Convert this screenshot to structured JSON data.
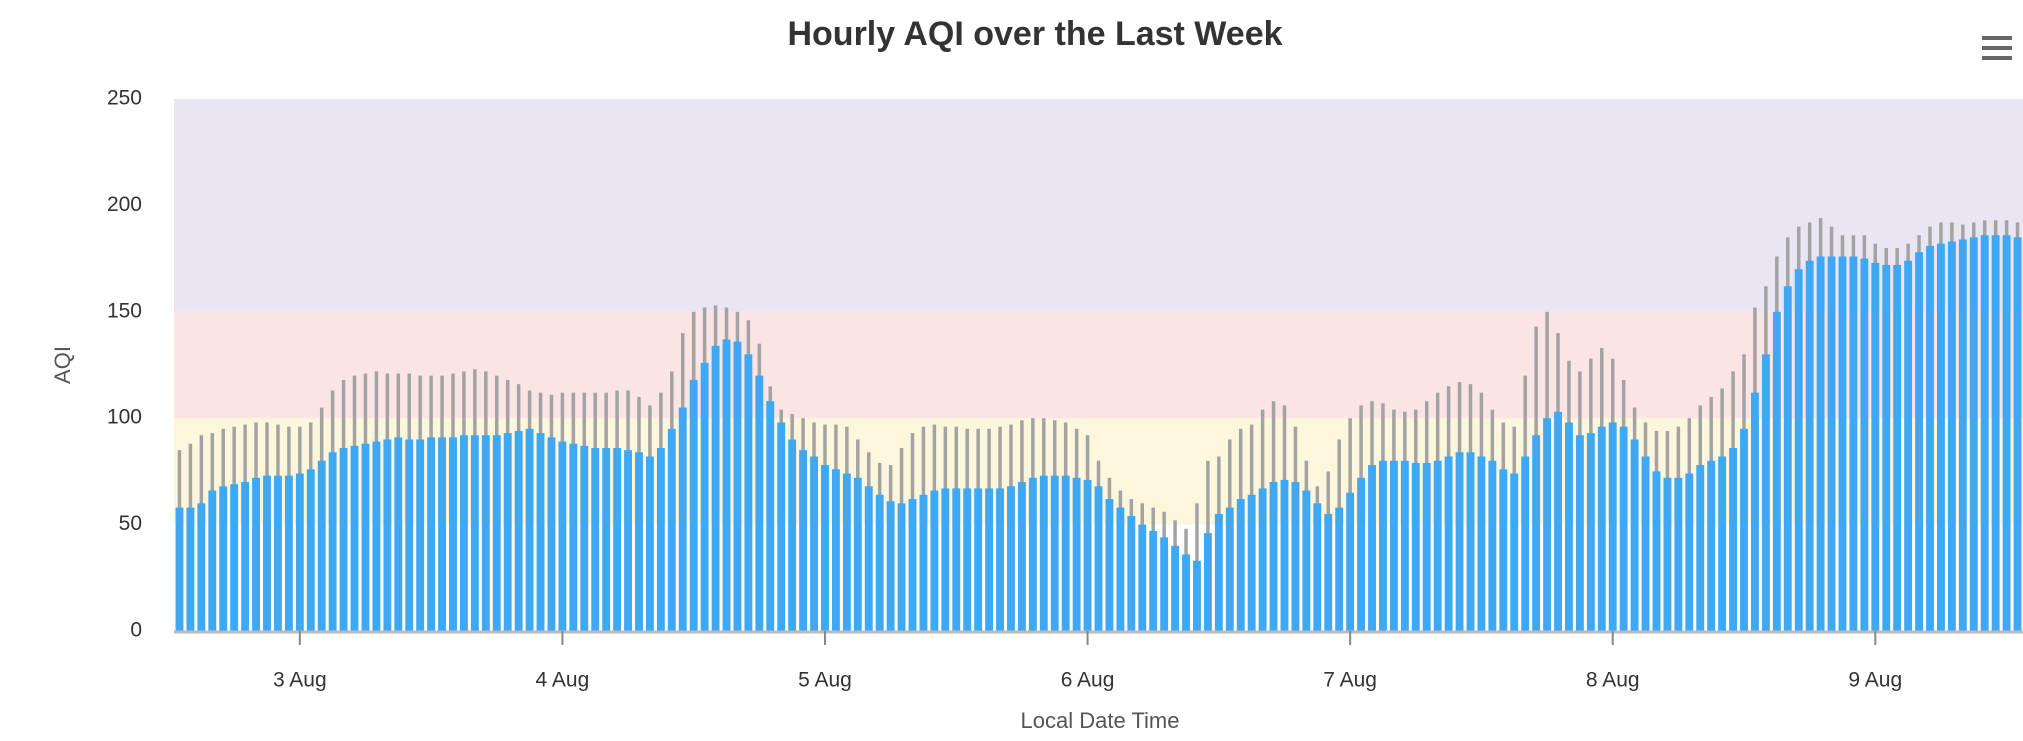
{
  "chart_data": {
    "type": "bar",
    "title": "Hourly AQI over the Last Week",
    "x_label": "Local Date Time",
    "y_label": "AQI",
    "categories": [
      null,
      null,
      null,
      null,
      null,
      null,
      null,
      null,
      null,
      null,
      null,
      "3 Aug",
      null,
      null,
      null,
      null,
      null,
      null,
      null,
      null,
      null,
      null,
      null,
      null,
      null,
      null,
      null,
      null,
      null,
      null,
      null,
      null,
      null,
      null,
      null,
      "4 Aug",
      null,
      null,
      null,
      null,
      null,
      null,
      null,
      null,
      null,
      null,
      null,
      null,
      null,
      null,
      null,
      null,
      null,
      null,
      null,
      null,
      null,
      null,
      null,
      "5 Aug",
      null,
      null,
      null,
      null,
      null,
      null,
      null,
      null,
      null,
      null,
      null,
      null,
      null,
      null,
      null,
      null,
      null,
      null,
      null,
      null,
      null,
      null,
      null,
      "6 Aug",
      null,
      null,
      null,
      null,
      null,
      null,
      null,
      null,
      null,
      null,
      null,
      null,
      null,
      null,
      null,
      null,
      null,
      null,
      null,
      null,
      null,
      null,
      null,
      "7 Aug",
      null,
      null,
      null,
      null,
      null,
      null,
      null,
      null,
      null,
      null,
      null,
      null,
      null,
      null,
      null,
      null,
      null,
      null,
      null,
      null,
      null,
      null,
      null,
      "8 Aug",
      null,
      null,
      null,
      null,
      null,
      null,
      null,
      null,
      null,
      null,
      null,
      null,
      null,
      null,
      null,
      null,
      null,
      null,
      null,
      null,
      null,
      null,
      null,
      "9 Aug",
      null,
      null,
      null,
      null,
      null,
      null,
      null,
      null,
      null,
      null,
      null,
      null,
      null
    ],
    "series": [
      {
        "color": "#a3a3a3",
        "values": [
          85,
          88,
          92,
          93,
          95,
          96,
          97,
          98,
          98,
          97,
          96,
          96,
          98,
          105,
          113,
          118,
          120,
          121,
          122,
          121,
          121,
          121,
          120,
          120,
          120,
          121,
          122,
          123,
          122,
          120,
          118,
          116,
          113,
          112,
          111,
          112,
          112,
          112,
          112,
          112,
          113,
          113,
          110,
          106,
          112,
          122,
          140,
          150,
          152,
          153,
          152,
          150,
          146,
          135,
          115,
          104,
          102,
          100,
          98,
          97,
          97,
          96,
          90,
          84,
          79,
          78,
          86,
          93,
          96,
          97,
          96,
          96,
          95,
          95,
          95,
          96,
          97,
          99,
          100,
          100,
          99,
          98,
          95,
          92,
          80,
          72,
          66,
          62,
          60,
          58,
          56,
          52,
          48,
          60,
          80,
          82,
          90,
          95,
          97,
          104,
          108,
          106,
          96,
          80,
          68,
          75,
          90,
          100,
          106,
          108,
          107,
          104,
          103,
          104,
          108,
          112,
          115,
          117,
          116,
          112,
          104,
          98,
          96,
          120,
          143,
          150,
          140,
          127,
          122,
          128,
          133,
          128,
          118,
          105,
          98,
          94,
          94,
          96,
          100,
          106,
          110,
          114,
          122,
          130,
          152,
          162,
          176,
          185,
          190,
          192,
          194,
          190,
          186,
          186,
          186,
          182,
          180,
          180,
          182,
          186,
          190,
          192,
          192,
          191,
          192,
          193,
          193,
          193,
          192
        ]
      },
      {
        "color": "#3ea8f4",
        "values": [
          58,
          58,
          60,
          66,
          68,
          69,
          70,
          72,
          73,
          73,
          73,
          74,
          76,
          80,
          84,
          86,
          87,
          88,
          89,
          90,
          91,
          90,
          90,
          91,
          91,
          91,
          92,
          92,
          92,
          92,
          93,
          94,
          95,
          93,
          91,
          89,
          88,
          87,
          86,
          86,
          86,
          85,
          84,
          82,
          86,
          95,
          105,
          118,
          126,
          134,
          137,
          136,
          130,
          120,
          108,
          98,
          90,
          85,
          82,
          78,
          76,
          74,
          72,
          68,
          64,
          61,
          60,
          62,
          64,
          66,
          67,
          67,
          67,
          67,
          67,
          67,
          68,
          70,
          72,
          73,
          73,
          73,
          72,
          71,
          68,
          62,
          58,
          54,
          50,
          47,
          44,
          40,
          36,
          33,
          46,
          55,
          58,
          62,
          64,
          67,
          70,
          71,
          70,
          66,
          60,
          55,
          58,
          65,
          72,
          78,
          80,
          80,
          80,
          79,
          79,
          80,
          82,
          84,
          84,
          82,
          80,
          76,
          74,
          82,
          92,
          100,
          103,
          98,
          92,
          93,
          96,
          98,
          96,
          90,
          82,
          75,
          72,
          72,
          74,
          78,
          80,
          82,
          86,
          95,
          112,
          130,
          150,
          162,
          170,
          174,
          176,
          176,
          176,
          176,
          175,
          173,
          172,
          172,
          174,
          178,
          181,
          182,
          183,
          184,
          185,
          186,
          186,
          186,
          185
        ]
      }
    ],
    "bands": [
      {
        "from": 50,
        "to": 100,
        "color": "#fbf6dc"
      },
      {
        "from": 100,
        "to": 150,
        "color": "#fbe4e4"
      },
      {
        "from": 150,
        "to": 250,
        "color": "#e9e5f3"
      }
    ],
    "ylim": [
      0,
      250
    ],
    "yticks": [
      0,
      50,
      100,
      150,
      200,
      250
    ],
    "grid": false
  }
}
